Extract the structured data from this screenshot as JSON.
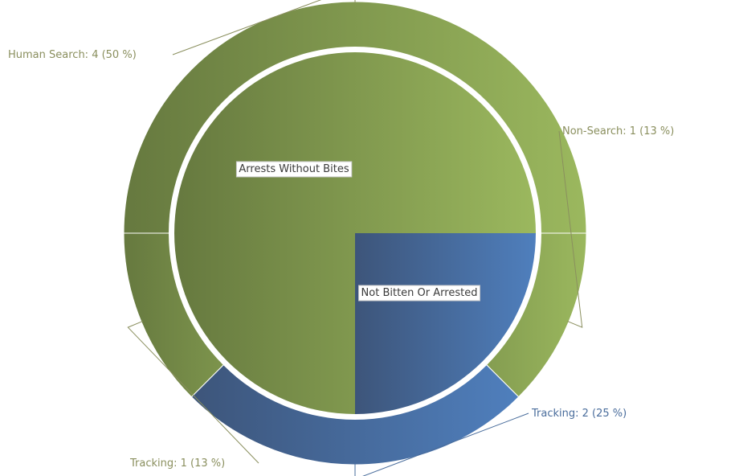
{
  "chart_data": {
    "type": "pie",
    "subtype": "nested-donut",
    "inner_ring": [
      {
        "label": "Arrests Without Bites",
        "value": 6,
        "color": "#7f9a4d"
      },
      {
        "label": "Not Bitten Or Arrested",
        "value": 2,
        "color": "#4a6d9c"
      }
    ],
    "outer_ring": [
      {
        "label": "Non-Search: 1 (13 %)",
        "category": "Non-Search",
        "value": 1,
        "percent": 13,
        "group": "Arrests Without Bites",
        "color": "#7f9a4d",
        "label_color": "#8a8f5e"
      },
      {
        "label": "Tracking: 2 (25 %)",
        "category": "Tracking",
        "value": 2,
        "percent": 25,
        "group": "Not Bitten Or Arrested",
        "color": "#4a6d9c",
        "label_color": "#4a6d9c"
      },
      {
        "label": "Tracking: 1 (13 %)",
        "category": "Tracking",
        "value": 1,
        "percent": 13,
        "group": "Arrests Without Bites",
        "color": "#7f9a4d",
        "label_color": "#8a8f5e"
      },
      {
        "label": "Human Search: 4 (50 %)",
        "category": "Human Search",
        "value": 4,
        "percent": 50,
        "group": "Arrests Without Bites",
        "color": "#7f9a4d",
        "label_color": "#8a8f5e"
      }
    ],
    "colors": {
      "green": "#7f9a4d",
      "blue": "#4a6d9c",
      "separator": "#ffffff"
    },
    "legend": "none",
    "grid": false
  }
}
